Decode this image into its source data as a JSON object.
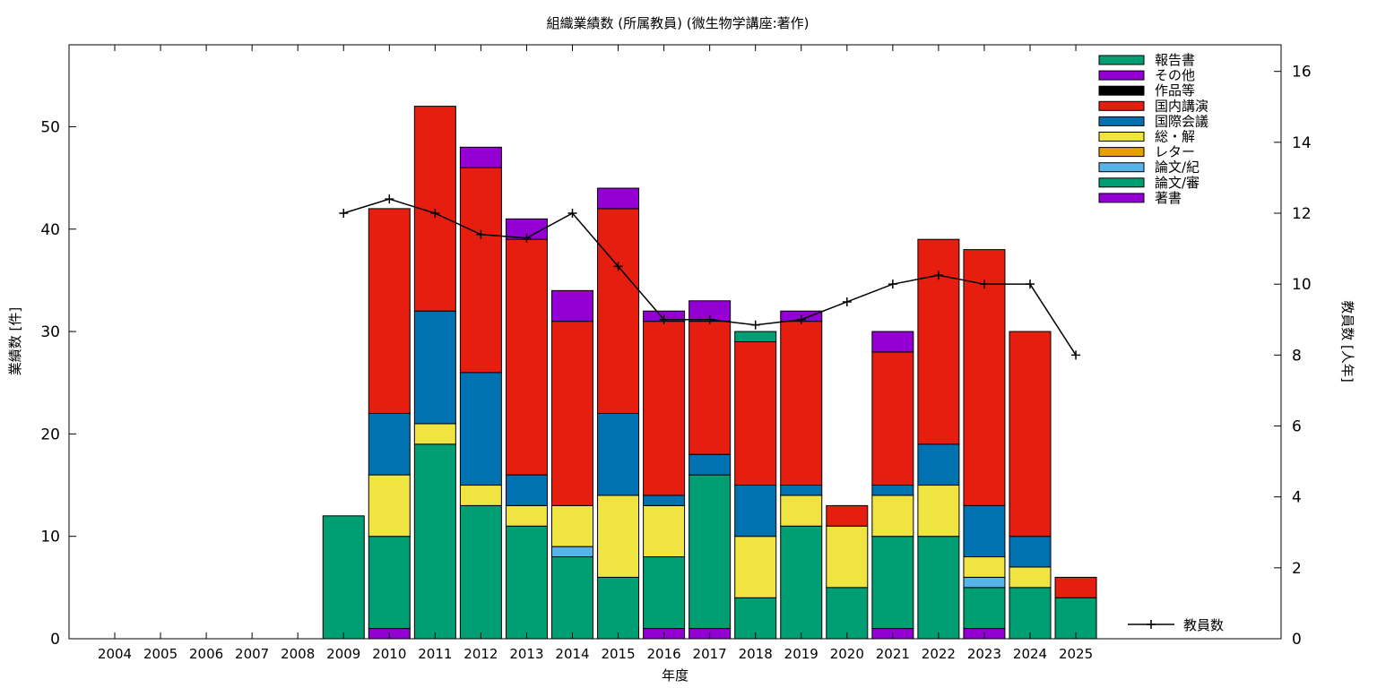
{
  "chart_data": {
    "type": "bar",
    "title": "組織業績数 (所属教員) (微生物学講座:著作)",
    "xlabel": "年度",
    "ylabel": "業績数 [件]",
    "y2label": "教員数 [人年]",
    "ylim": [
      0,
      58
    ],
    "yticks": [
      0,
      10,
      20,
      30,
      40,
      50
    ],
    "y2lim": [
      0,
      16.75
    ],
    "y2ticks": [
      0,
      2,
      4,
      6,
      8,
      10,
      12,
      14,
      16
    ],
    "grid": false,
    "legend_position": "top-right",
    "categories": [
      "2004",
      "2005",
      "2006",
      "2007",
      "2008",
      "2009",
      "2010",
      "2011",
      "2012",
      "2013",
      "2014",
      "2015",
      "2016",
      "2017",
      "2018",
      "2019",
      "2020",
      "2021",
      "2022",
      "2023",
      "2024",
      "2025"
    ],
    "series": [
      {
        "name": "著書",
        "color": "#9400d3",
        "values": [
          0,
          0,
          0,
          0,
          0,
          0,
          1,
          0,
          0,
          0,
          0,
          0,
          1,
          1,
          0,
          0,
          0,
          1,
          0,
          1,
          0,
          0
        ]
      },
      {
        "name": "論文/審",
        "color": "#009e73",
        "values": [
          0,
          0,
          0,
          0,
          0,
          12,
          9,
          19,
          13,
          11,
          8,
          6,
          7,
          15,
          4,
          11,
          5,
          9,
          10,
          4,
          5,
          4
        ]
      },
      {
        "name": "論文/紀",
        "color": "#56b4e9",
        "values": [
          0,
          0,
          0,
          0,
          0,
          0,
          0,
          0,
          0,
          0,
          1,
          0,
          0,
          0,
          0,
          0,
          0,
          0,
          0,
          1,
          0,
          0
        ]
      },
      {
        "name": "レター",
        "color": "#e69f00",
        "values": [
          0,
          0,
          0,
          0,
          0,
          0,
          0,
          0,
          0,
          0,
          0,
          0,
          0,
          0,
          0,
          0,
          0,
          0,
          0,
          0,
          0,
          0
        ]
      },
      {
        "name": "総・解",
        "color": "#f0e442",
        "values": [
          0,
          0,
          0,
          0,
          0,
          0,
          6,
          2,
          2,
          2,
          4,
          8,
          5,
          0,
          6,
          3,
          6,
          4,
          5,
          2,
          2,
          0
        ]
      },
      {
        "name": "国際会議",
        "color": "#0072b2",
        "values": [
          0,
          0,
          0,
          0,
          0,
          0,
          6,
          11,
          11,
          3,
          0,
          8,
          1,
          2,
          5,
          1,
          0,
          1,
          4,
          5,
          3,
          0
        ]
      },
      {
        "name": "国内講演",
        "color": "#e51e10",
        "values": [
          0,
          0,
          0,
          0,
          0,
          0,
          20,
          20,
          20,
          23,
          18,
          20,
          17,
          13,
          14,
          16,
          2,
          13,
          20,
          25,
          20,
          2
        ]
      },
      {
        "name": "作品等",
        "color": "#000000",
        "values": [
          0,
          0,
          0,
          0,
          0,
          0,
          0,
          0,
          0,
          0,
          0,
          0,
          0,
          0,
          0,
          0,
          0,
          0,
          0,
          0,
          0,
          0
        ]
      },
      {
        "name": "その他",
        "color": "#9400d3",
        "values": [
          0,
          0,
          0,
          0,
          0,
          0,
          0,
          0,
          2,
          2,
          3,
          2,
          1,
          2,
          0,
          1,
          0,
          2,
          0,
          0,
          0,
          0
        ]
      },
      {
        "name": "報告書",
        "color": "#009e73",
        "values": [
          0,
          0,
          0,
          0,
          0,
          0,
          0,
          0,
          0,
          0,
          0,
          0,
          0,
          0,
          1,
          0,
          0,
          0,
          0,
          0,
          0,
          0
        ]
      }
    ],
    "line_series": {
      "name": "教員数",
      "color": "#000000",
      "x": [
        "2009",
        "2010",
        "2011",
        "2012",
        "2013",
        "2014",
        "2015",
        "2016",
        "2017",
        "2018",
        "2019",
        "2020",
        "2021",
        "2022",
        "2023",
        "2024",
        "2025"
      ],
      "values": [
        12.0,
        12.4,
        12.0,
        11.4,
        11.3,
        12.0,
        10.5,
        9.0,
        9.0,
        8.85,
        9.0,
        9.5,
        10.0,
        10.25,
        10.0,
        10.0,
        8.0
      ]
    }
  }
}
